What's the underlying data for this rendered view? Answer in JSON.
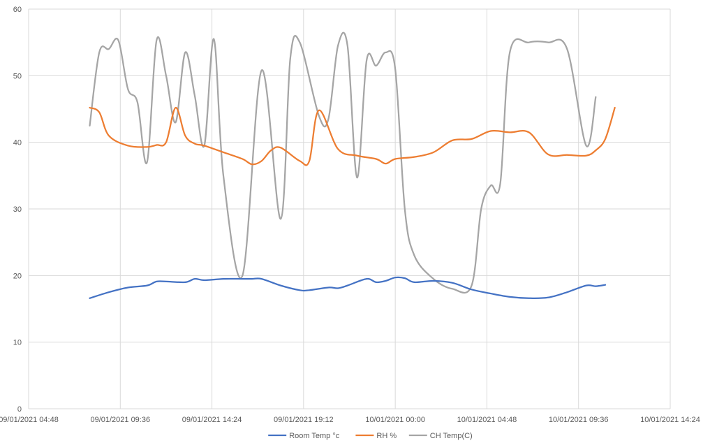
{
  "chart_data": {
    "type": "line",
    "title": "",
    "xlabel": "",
    "ylabel": "",
    "ylim": [
      0,
      60
    ],
    "yticks": [
      0,
      10,
      20,
      30,
      40,
      50,
      60
    ],
    "xlim": [
      "2021-01-09 04:48",
      "2021-01-10 14:24"
    ],
    "xticks": [
      "2021-01-09 04:48",
      "2021-01-09 09:36",
      "2021-01-09 14:24",
      "2021-01-09 19:12",
      "2021-01-10 00:00",
      "2021-01-10 04:48",
      "2021-01-10 09:36",
      "2021-01-10 14:24"
    ],
    "xtick_labels": [
      "09/01/2021 04:48",
      "09/01/2021 09:36",
      "09/01/2021 14:24",
      "09/01/2021 19:12",
      "10/01/2021 00:00",
      "10/01/2021 04:48",
      "10/01/2021 09:36",
      "10/01/2021 14:24"
    ],
    "grid": true,
    "legend": "bottom",
    "smooth": true,
    "series": [
      {
        "name": "Room Temp °c",
        "color": "#4472C4",
        "x": [
          "2021-01-09 08:00",
          "2021-01-09 09:00",
          "2021-01-09 10:00",
          "2021-01-09 11:00",
          "2021-01-09 11:30",
          "2021-01-09 12:00",
          "2021-01-09 13:00",
          "2021-01-09 13:30",
          "2021-01-09 14:00",
          "2021-01-09 15:00",
          "2021-01-09 16:00",
          "2021-01-09 16:30",
          "2021-01-09 17:00",
          "2021-01-09 18:00",
          "2021-01-09 19:00",
          "2021-01-09 19:30",
          "2021-01-09 20:30",
          "2021-01-09 21:00",
          "2021-01-09 21:30",
          "2021-01-09 22:30",
          "2021-01-09 23:00",
          "2021-01-09 23:30",
          "2021-01-10 00:00",
          "2021-01-10 00:30",
          "2021-01-10 01:00",
          "2021-01-10 02:00",
          "2021-01-10 03:00",
          "2021-01-10 04:00",
          "2021-01-10 05:00",
          "2021-01-10 06:00",
          "2021-01-10 07:00",
          "2021-01-10 08:00",
          "2021-01-10 09:00",
          "2021-01-10 10:00",
          "2021-01-10 10:30",
          "2021-01-10 11:00"
        ],
        "y": [
          16.6,
          17.5,
          18.2,
          18.5,
          19.1,
          19.1,
          19.0,
          19.5,
          19.3,
          19.5,
          19.5,
          19.5,
          19.5,
          18.5,
          17.8,
          17.8,
          18.2,
          18.1,
          18.5,
          19.5,
          19.0,
          19.2,
          19.7,
          19.6,
          19.0,
          19.2,
          18.9,
          17.9,
          17.3,
          16.8,
          16.6,
          16.7,
          17.5,
          18.5,
          18.4,
          18.6
        ]
      },
      {
        "name": "RH %",
        "color": "#ED7D31",
        "x": [
          "2021-01-09 08:00",
          "2021-01-09 08:30",
          "2021-01-09 09:00",
          "2021-01-09 10:00",
          "2021-01-09 11:00",
          "2021-01-09 11:30",
          "2021-01-09 12:00",
          "2021-01-09 12:30",
          "2021-01-09 13:00",
          "2021-01-09 13:30",
          "2021-01-09 14:00",
          "2021-01-09 15:00",
          "2021-01-09 16:00",
          "2021-01-09 16:30",
          "2021-01-09 17:00",
          "2021-01-09 17:30",
          "2021-01-09 18:00",
          "2021-01-09 19:00",
          "2021-01-09 19:30",
          "2021-01-09 20:00",
          "2021-01-09 21:00",
          "2021-01-09 22:00",
          "2021-01-09 23:00",
          "2021-01-09 23:30",
          "2021-01-10 00:00",
          "2021-01-10 01:00",
          "2021-01-10 02:00",
          "2021-01-10 03:00",
          "2021-01-10 04:00",
          "2021-01-10 05:00",
          "2021-01-10 06:00",
          "2021-01-10 07:00",
          "2021-01-10 08:00",
          "2021-01-10 09:00",
          "2021-01-10 10:00",
          "2021-01-10 10:30",
          "2021-01-10 11:00",
          "2021-01-10 11:30"
        ],
        "y": [
          45.2,
          44.5,
          41.0,
          39.5,
          39.3,
          39.6,
          40.0,
          45.2,
          41.0,
          39.8,
          39.5,
          38.5,
          37.5,
          36.7,
          37.2,
          38.8,
          39.2,
          37.2,
          37.2,
          44.8,
          39.0,
          38.0,
          37.5,
          36.8,
          37.5,
          37.8,
          38.5,
          40.3,
          40.5,
          41.7,
          41.5,
          41.5,
          38.2,
          38.1,
          38.0,
          38.8,
          40.5,
          45.2
        ]
      },
      {
        "name": "CH Temp(C)",
        "color": "#A5A5A5",
        "x": [
          "2021-01-09 08:00",
          "2021-01-09 08:30",
          "2021-01-09 09:00",
          "2021-01-09 09:30",
          "2021-01-09 10:00",
          "2021-01-09 10:30",
          "2021-01-09 11:00",
          "2021-01-09 11:30",
          "2021-01-09 12:00",
          "2021-01-09 12:30",
          "2021-01-09 13:00",
          "2021-01-09 13:30",
          "2021-01-09 14:00",
          "2021-01-09 14:30",
          "2021-01-09 15:00",
          "2021-01-09 16:00",
          "2021-01-09 17:00",
          "2021-01-09 18:00",
          "2021-01-09 18:30",
          "2021-01-09 19:00",
          "2021-01-09 20:00",
          "2021-01-09 20:30",
          "2021-01-09 21:00",
          "2021-01-09 21:30",
          "2021-01-09 22:00",
          "2021-01-09 22:30",
          "2021-01-09 23:00",
          "2021-01-09 23:30",
          "2021-01-10 00:00",
          "2021-01-10 00:30",
          "2021-01-10 01:00",
          "2021-01-10 02:00",
          "2021-01-10 03:00",
          "2021-01-10 04:00",
          "2021-01-10 04:30",
          "2021-01-10 05:00",
          "2021-01-10 05:30",
          "2021-01-10 06:00",
          "2021-01-10 07:00",
          "2021-01-10 08:00",
          "2021-01-10 09:00",
          "2021-01-10 10:00",
          "2021-01-10 10:30"
        ],
        "y": [
          42.5,
          53.5,
          54.0,
          55.3,
          48.0,
          46.0,
          37.0,
          55.3,
          50.0,
          43.0,
          53.5,
          47.0,
          39.5,
          55.5,
          35.0,
          20.0,
          50.8,
          28.5,
          52.5,
          55.0,
          44.0,
          43.5,
          54.5,
          54.5,
          34.7,
          52.3,
          51.5,
          53.5,
          51.0,
          30.0,
          23.0,
          19.5,
          18.0,
          18.5,
          30.0,
          33.5,
          33.8,
          53.5,
          55.0,
          55.0,
          54.0,
          39.5,
          46.8
        ]
      }
    ]
  }
}
